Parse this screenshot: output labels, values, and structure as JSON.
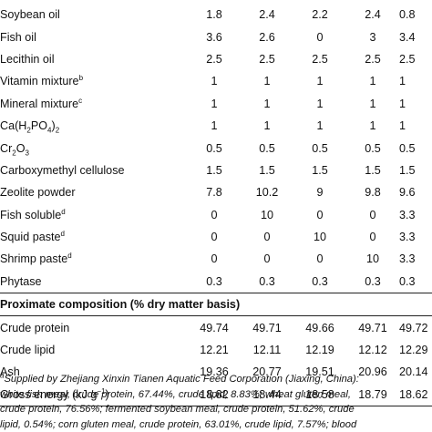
{
  "ingredient_rows": [
    {
      "label": "Soybean oil",
      "values": [
        "1.8",
        "2.4",
        "2.2",
        "2.4",
        "0.8"
      ]
    },
    {
      "label": "Fish oil",
      "values": [
        "3.6",
        "2.6",
        "0",
        "3",
        "3.4"
      ]
    },
    {
      "label": "Lecithin oil",
      "values": [
        "2.5",
        "2.5",
        "2.5",
        "2.5",
        "2.5"
      ]
    },
    {
      "label": "Vitamin mixture",
      "sup": "b",
      "values": [
        "1",
        "1",
        "1",
        "1",
        "1"
      ]
    },
    {
      "label": "Mineral mixture",
      "sup": "c",
      "values": [
        "1",
        "1",
        "1",
        "1",
        "1"
      ]
    },
    {
      "label_html": "Ca(H<sub>2</sub>PO<sub>4</sub>)<sub>2</sub>",
      "label_text": "Ca(H2PO4)2",
      "values": [
        "1",
        "1",
        "1",
        "1",
        "1"
      ]
    },
    {
      "label_html": "Cr<sub>2</sub>O<sub>3</sub>",
      "label_text": "Cr2O3",
      "values": [
        "0.5",
        "0.5",
        "0.5",
        "0.5",
        "0.5"
      ]
    },
    {
      "label": "Carboxymethyl cellulose",
      "values": [
        "1.5",
        "1.5",
        "1.5",
        "1.5",
        "1.5"
      ]
    },
    {
      "label": "Zeolite powder",
      "values": [
        "7.8",
        "10.2",
        "9",
        "9.8",
        "9.6"
      ]
    },
    {
      "label": "Fish soluble",
      "sup": "d",
      "values": [
        "0",
        "10",
        "0",
        "0",
        "3.3"
      ]
    },
    {
      "label": "Squid paste",
      "sup": "d",
      "values": [
        "0",
        "0",
        "10",
        "0",
        "3.3"
      ]
    },
    {
      "label": "Shrimp paste",
      "sup": "d",
      "values": [
        "0",
        "0",
        "0",
        "10",
        "3.3"
      ]
    },
    {
      "label": "Phytase",
      "values": [
        "0.3",
        "0.3",
        "0.3",
        "0.3",
        "0.3"
      ]
    }
  ],
  "section_title": "Proximate composition (% dry matter basis)",
  "proximate_rows": [
    {
      "label": "Crude protein",
      "values": [
        "49.74",
        "49.71",
        "49.66",
        "49.71",
        "49.72"
      ]
    },
    {
      "label": "Crude lipid",
      "values": [
        "12.21",
        "12.11",
        "12.19",
        "12.12",
        "12.29"
      ]
    },
    {
      "label": "Ash",
      "values": [
        "19.36",
        "20.77",
        "19.51",
        "20.96",
        "20.14"
      ]
    },
    {
      "label_html": "Gross energy (kJ g<sup>−1</sup>)",
      "label_text": "Gross energy (kJ g−1)",
      "values": [
        "18.82",
        "18.44",
        "18.58",
        "18.79",
        "18.62"
      ]
    }
  ],
  "footnote": {
    "marker": "a",
    "lines": [
      "Supplied by Zhejiang Xinxin Tianen Aquatic Feed Corporation (Jiaxing, China):",
      "white fish meal, crude protein, 67.44%, crude lipid, 8.83%; wheat gluten meal,",
      "crude protein, 76.56%; fermented soybean meal, crude protein, 51.62%, crude",
      "lipid, 0.54%; corn gluten meal, crude protein, 63.01%, crude lipid, 7.57%; blood"
    ]
  }
}
